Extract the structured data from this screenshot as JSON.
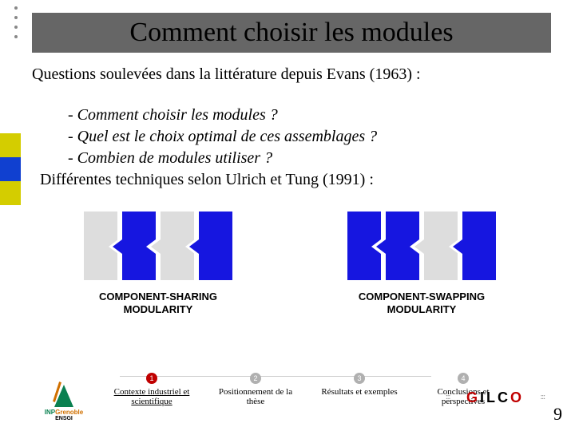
{
  "title": "Comment choisir les modules",
  "intro": "Questions soulevées dans la littérature depuis Evans (1963)  :",
  "questions": {
    "q1": "- Comment choisir les modules ?",
    "q2": "- Quel est le choix optimal de ces assemblages ?",
    "q3": "- Combien de modules utiliser ?"
  },
  "techniques": "Différentes techniques selon Ulrich et Tung (1991)  :",
  "diagram_left_l1": "COMPONENT-SHARING",
  "diagram_left_l2": "MODULARITY",
  "diagram_right_l1": "COMPONENT-SWAPPING",
  "diagram_right_l2": "MODULARITY",
  "steps": {
    "s1": "Contexte industriel et scientifique",
    "s2": "Positionnement de la thèse",
    "s3": "Résultats et exemples",
    "s4": "Conclusions et perspectives"
  },
  "logo_left_l1a": "INP",
  "logo_left_l1b": "Grenoble",
  "logo_left_l2": "ENSGI",
  "gilco_g": "G",
  "gilco_i": "I",
  "gilco_l": "L",
  "gilco_c": "C",
  "gilco_o": "O",
  "page": "9",
  "colors": {
    "title_bar": "#666666",
    "blue": "#1616e0",
    "gray_block": "#dddddd",
    "yellow": "#d4cd00",
    "side_blue": "#1040d0",
    "active_red": "#c00000",
    "green": "#0a8050"
  }
}
